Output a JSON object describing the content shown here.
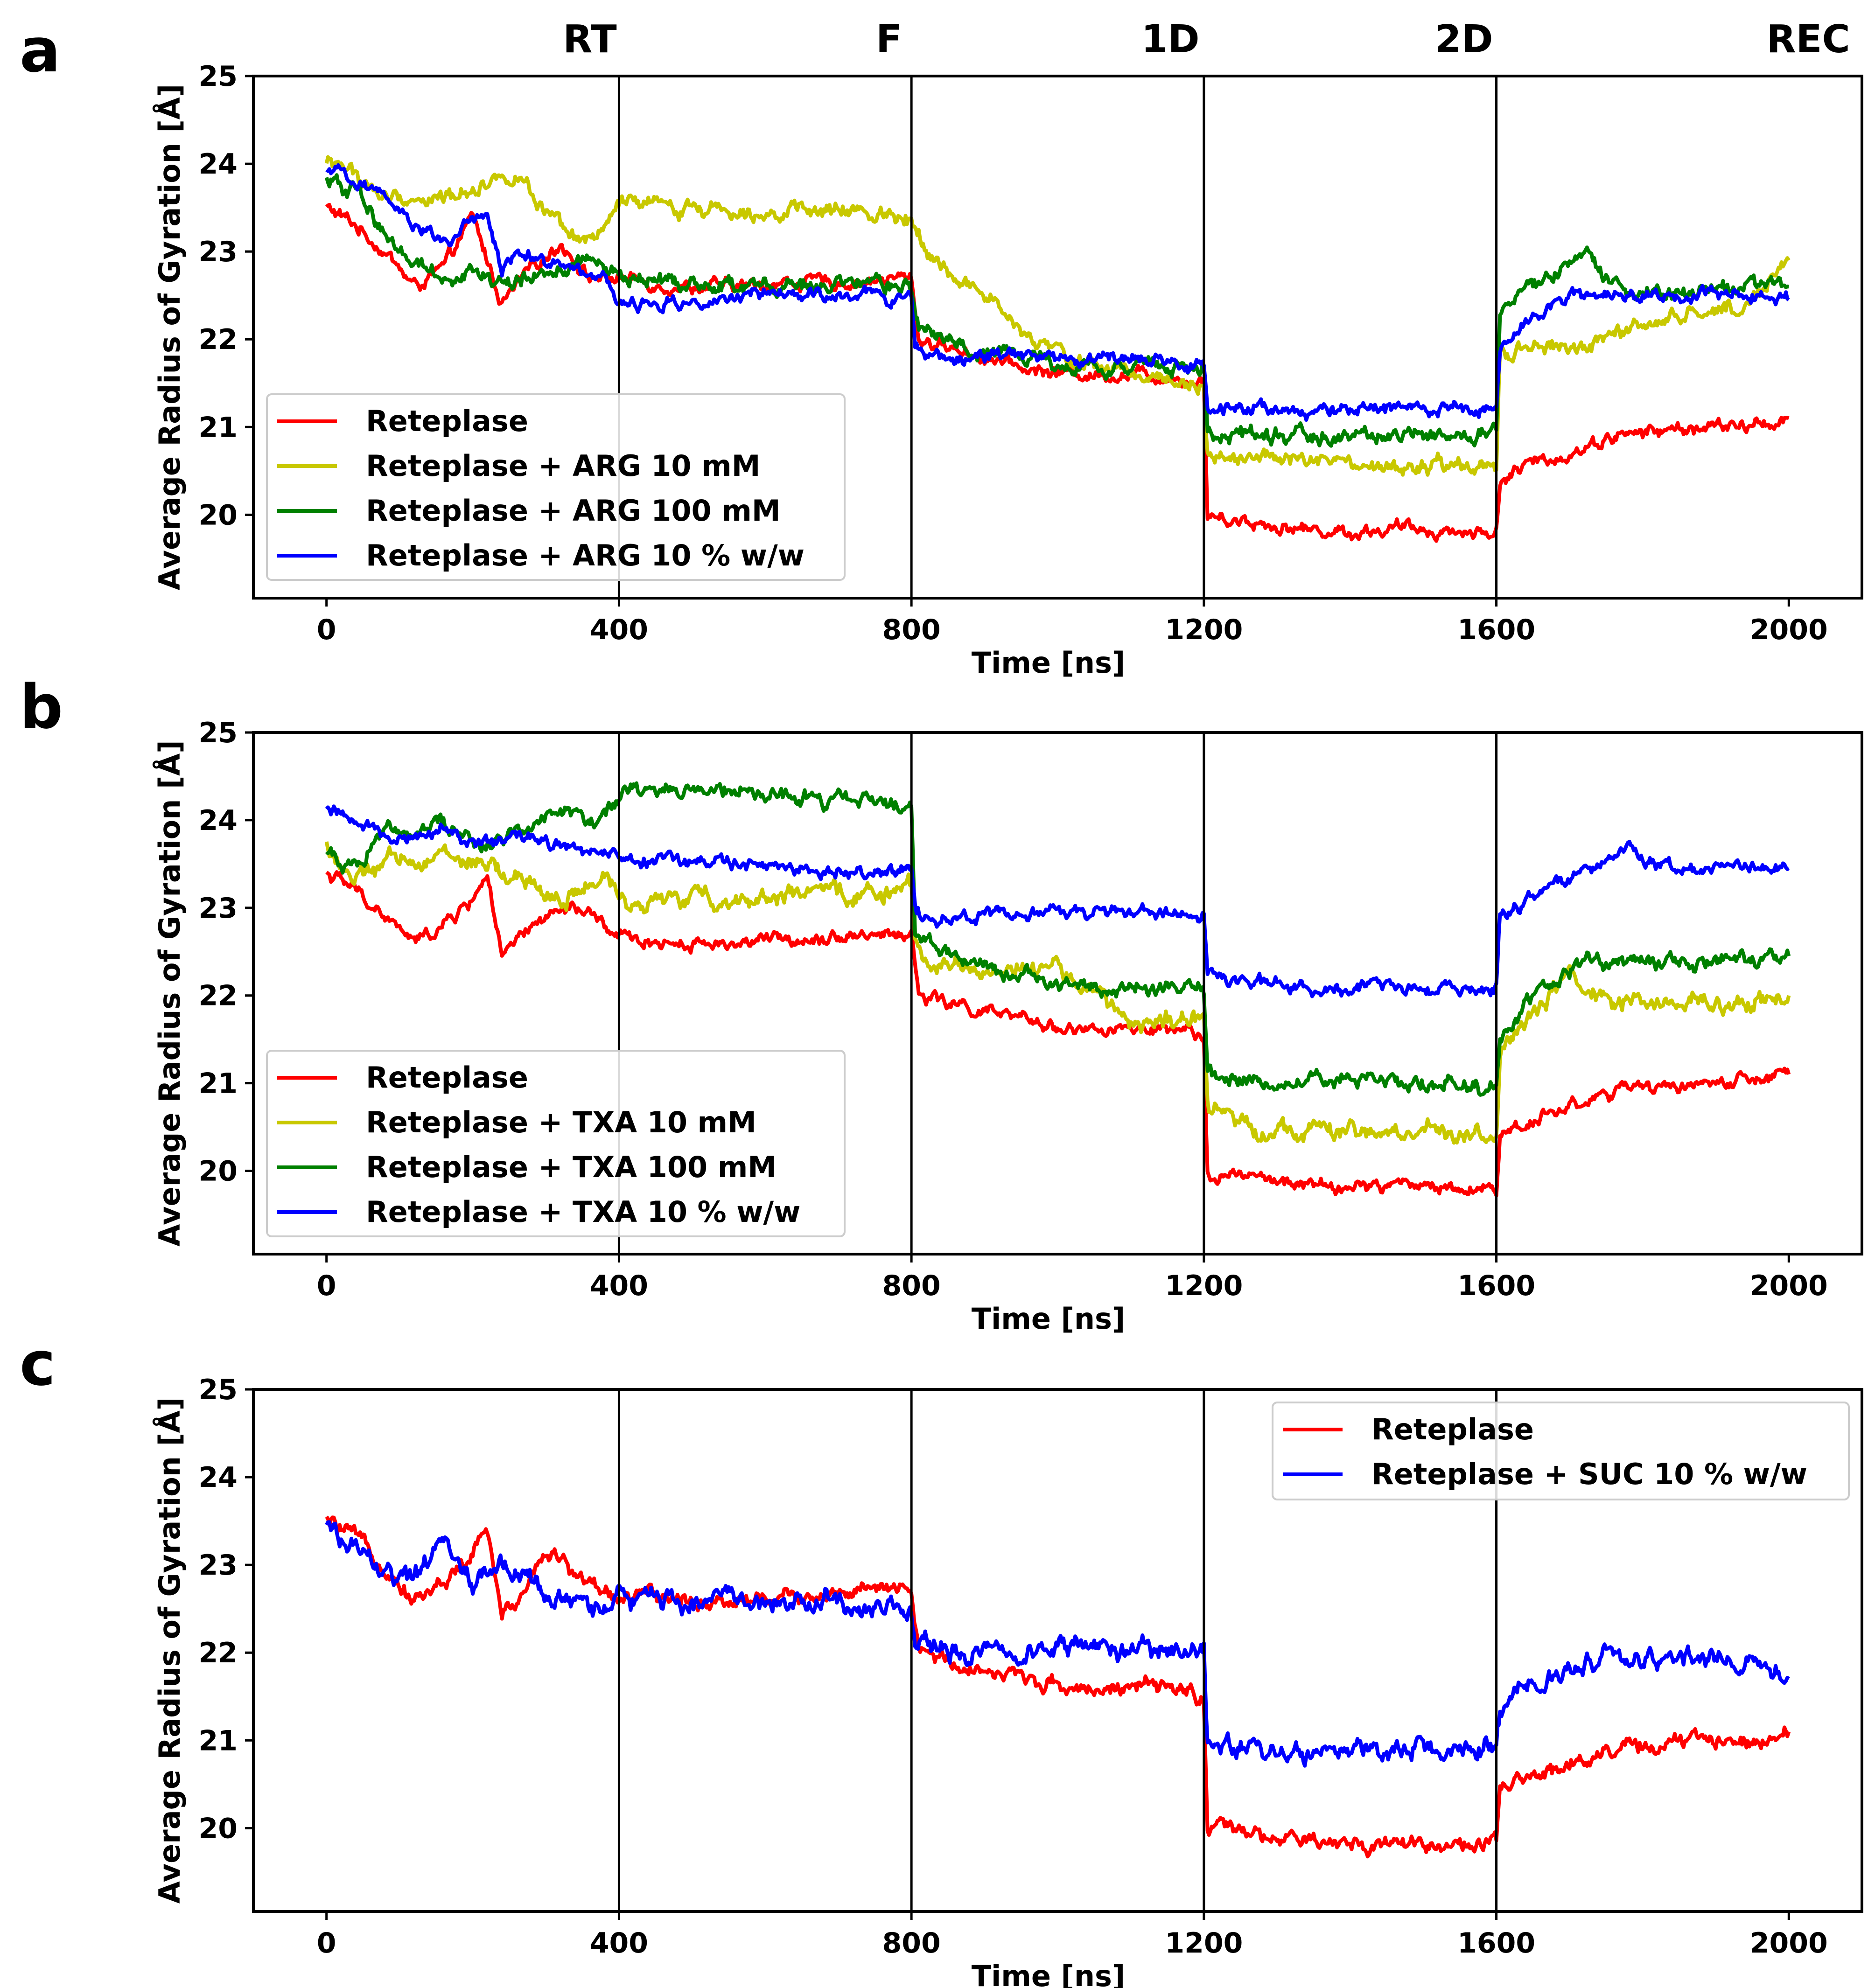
{
  "figure": {
    "phase_labels": [
      "RT",
      "F",
      "1D",
      "2D",
      "REC"
    ],
    "phase_boundaries_ns": [
      400,
      800,
      1200,
      1600
    ],
    "xlabel": "Time [ns]",
    "ylabel": "Average Radius of Gyration [Å]",
    "colors": {
      "Reteplase": "#ff0000",
      "10mM": "#c8c800",
      "100mM": "#008000",
      "10ww": "#0000ff"
    }
  },
  "chart_data": [
    {
      "panel": "a",
      "type": "line",
      "title": "",
      "xlabel": "Time [ns]",
      "ylabel": "Average Radius of Gyration [Å]",
      "xlim": [
        -100,
        2100
      ],
      "ylim": [
        19.05,
        25
      ],
      "xticks": [
        0,
        400,
        800,
        1200,
        1600,
        2000
      ],
      "yticks": [
        20,
        21,
        22,
        23,
        24,
        25
      ],
      "legend_position": "lower-left",
      "series": [
        {
          "name": "Reteplase",
          "color": "#ff0000",
          "x": [
            0,
            40,
            80,
            120,
            160,
            200,
            240,
            280,
            320,
            360,
            400,
            480,
            560,
            640,
            720,
            800,
            810,
            880,
            960,
            1040,
            1120,
            1180,
            1200,
            1205,
            1240,
            1320,
            1400,
            1480,
            1560,
            1600,
            1605,
            1640,
            1700,
            1760,
            1820,
            1880,
            1940,
            2000
          ],
          "y": [
            23.5,
            23.3,
            23.0,
            22.6,
            22.8,
            23.4,
            22.4,
            22.8,
            23.1,
            22.7,
            22.7,
            22.6,
            22.6,
            22.65,
            22.65,
            22.7,
            22.0,
            21.85,
            21.65,
            21.6,
            21.6,
            21.55,
            21.5,
            20.0,
            19.95,
            19.85,
            19.8,
            19.85,
            19.8,
            19.8,
            20.4,
            20.55,
            20.7,
            20.9,
            20.95,
            21.0,
            21.0,
            21.1
          ],
          "noise": 0.05
        },
        {
          "name": "Reteplase + ARG 10 mM",
          "color": "#c8c800",
          "x": [
            0,
            20,
            80,
            160,
            220,
            260,
            300,
            340,
            380,
            395,
            400,
            480,
            560,
            640,
            720,
            800,
            840,
            900,
            960,
            1040,
            1120,
            1200,
            1205,
            1280,
            1360,
            1440,
            1520,
            1600,
            1605,
            1640,
            1700,
            1760,
            1820,
            1880,
            1940,
            2000
          ],
          "y": [
            24.0,
            24.0,
            23.6,
            23.6,
            23.8,
            23.9,
            23.4,
            23.1,
            23.2,
            23.5,
            23.55,
            23.5,
            23.5,
            23.45,
            23.45,
            23.4,
            22.8,
            22.5,
            22.0,
            21.7,
            21.6,
            21.5,
            20.7,
            20.65,
            20.6,
            20.5,
            20.55,
            20.5,
            21.8,
            21.9,
            21.9,
            22.0,
            22.2,
            22.3,
            22.4,
            22.9
          ],
          "noise": 0.06
        },
        {
          "name": "Reteplase + ARG 100 mM",
          "color": "#008000",
          "x": [
            0,
            40,
            80,
            120,
            160,
            200,
            240,
            280,
            320,
            360,
            400,
            480,
            560,
            640,
            720,
            800,
            810,
            880,
            960,
            1040,
            1120,
            1200,
            1205,
            1280,
            1360,
            1440,
            1520,
            1600,
            1605,
            1640,
            1700,
            1730,
            1760,
            1820,
            1880,
            1940,
            2000
          ],
          "y": [
            23.8,
            23.7,
            23.2,
            22.9,
            22.7,
            22.8,
            22.6,
            22.7,
            22.8,
            22.9,
            22.7,
            22.65,
            22.6,
            22.6,
            22.6,
            22.6,
            22.1,
            21.9,
            21.8,
            21.7,
            21.7,
            21.65,
            20.95,
            20.9,
            20.9,
            20.9,
            20.9,
            20.9,
            22.2,
            22.6,
            22.8,
            22.9,
            22.6,
            22.55,
            22.55,
            22.6,
            22.6
          ],
          "noise": 0.06
        },
        {
          "name": "Reteplase + ARG 10 % w/w",
          "color": "#0000ff",
          "x": [
            0,
            40,
            80,
            120,
            160,
            200,
            220,
            240,
            260,
            300,
            340,
            380,
            400,
            480,
            560,
            640,
            720,
            800,
            805,
            880,
            960,
            1040,
            1120,
            1200,
            1205,
            1280,
            1360,
            1440,
            1520,
            1600,
            1605,
            1640,
            1700,
            1760,
            1820,
            1880,
            1940,
            2000
          ],
          "y": [
            23.9,
            23.8,
            23.7,
            23.3,
            23.1,
            23.3,
            23.4,
            22.8,
            23.0,
            22.9,
            22.85,
            22.7,
            22.4,
            22.4,
            22.45,
            22.5,
            22.5,
            22.45,
            21.85,
            21.8,
            21.8,
            21.75,
            21.75,
            21.7,
            21.2,
            21.2,
            21.2,
            21.2,
            21.2,
            21.2,
            21.8,
            22.2,
            22.5,
            22.5,
            22.5,
            22.55,
            22.5,
            22.45
          ],
          "noise": 0.05
        }
      ]
    },
    {
      "panel": "b",
      "type": "line",
      "title": "",
      "xlabel": "Time [ns]",
      "ylabel": "Average Radius of Gyration [Å]",
      "xlim": [
        -100,
        2100
      ],
      "ylim": [
        19.05,
        25
      ],
      "xticks": [
        0,
        400,
        800,
        1200,
        1600,
        2000
      ],
      "yticks": [
        20,
        21,
        22,
        23,
        24,
        25
      ],
      "legend_position": "lower-left",
      "series": [
        {
          "name": "Reteplase",
          "color": "#ff0000",
          "x": [
            0,
            40,
            80,
            120,
            160,
            200,
            220,
            240,
            260,
            300,
            340,
            380,
            400,
            480,
            560,
            640,
            720,
            800,
            810,
            880,
            960,
            1040,
            1120,
            1180,
            1200,
            1205,
            1240,
            1320,
            1400,
            1480,
            1560,
            1600,
            1605,
            1640,
            1700,
            1760,
            1820,
            1880,
            1940,
            2000
          ],
          "y": [
            23.4,
            23.2,
            22.9,
            22.6,
            22.8,
            23.1,
            23.4,
            22.4,
            22.6,
            22.9,
            23.0,
            22.8,
            22.65,
            22.6,
            22.6,
            22.65,
            22.7,
            22.7,
            22.0,
            21.85,
            21.7,
            21.6,
            21.6,
            21.55,
            21.5,
            20.0,
            19.95,
            19.85,
            19.8,
            19.85,
            19.8,
            19.8,
            20.4,
            20.55,
            20.75,
            20.9,
            20.95,
            21.0,
            21.0,
            21.1
          ],
          "noise": 0.05
        },
        {
          "name": "Reteplase + TXA 10 mM",
          "color": "#c8c800",
          "x": [
            0,
            40,
            80,
            160,
            240,
            320,
            380,
            400,
            480,
            560,
            640,
            720,
            800,
            805,
            880,
            960,
            1000,
            1040,
            1080,
            1120,
            1200,
            1205,
            1280,
            1360,
            1440,
            1520,
            1600,
            1605,
            1640,
            1700,
            1760,
            1820,
            1880,
            1940,
            2000
          ],
          "y": [
            23.7,
            23.3,
            23.5,
            23.6,
            23.4,
            23.1,
            23.3,
            23.1,
            23.1,
            23.1,
            23.15,
            23.15,
            23.2,
            22.5,
            22.3,
            22.3,
            22.3,
            22.1,
            21.8,
            21.7,
            21.7,
            20.7,
            20.5,
            20.45,
            20.4,
            20.45,
            20.4,
            21.3,
            21.7,
            22.2,
            21.9,
            21.9,
            21.95,
            21.9,
            22.0
          ],
          "noise": 0.07
        },
        {
          "name": "Reteplase + TXA 100 mM",
          "color": "#008000",
          "x": [
            0,
            40,
            80,
            120,
            160,
            200,
            240,
            280,
            320,
            360,
            400,
            420,
            480,
            560,
            640,
            720,
            800,
            805,
            880,
            960,
            1040,
            1120,
            1200,
            1205,
            1280,
            1360,
            1440,
            1520,
            1600,
            1605,
            1640,
            1700,
            1760,
            1820,
            1880,
            1940,
            2000
          ],
          "y": [
            23.6,
            23.5,
            23.9,
            23.9,
            24.0,
            23.7,
            23.8,
            24.0,
            24.1,
            24.0,
            24.2,
            24.35,
            24.35,
            24.3,
            24.25,
            24.2,
            24.2,
            22.7,
            22.35,
            22.25,
            22.1,
            22.05,
            22.05,
            21.1,
            21.05,
            21.05,
            21.0,
            21.0,
            20.95,
            21.5,
            21.9,
            22.3,
            22.4,
            22.4,
            22.35,
            22.4,
            22.45
          ],
          "noise": 0.06
        },
        {
          "name": "Reteplase + TXA 10 % w/w",
          "color": "#0000ff",
          "x": [
            0,
            40,
            80,
            120,
            160,
            200,
            240,
            280,
            320,
            360,
            400,
            480,
            560,
            640,
            720,
            800,
            805,
            880,
            960,
            1040,
            1120,
            1200,
            1205,
            1280,
            1360,
            1440,
            1520,
            1600,
            1605,
            1640,
            1700,
            1760,
            1780,
            1820,
            1880,
            1940,
            2000
          ],
          "y": [
            24.1,
            24.0,
            23.9,
            23.8,
            23.9,
            23.7,
            23.75,
            23.8,
            23.7,
            23.65,
            23.6,
            23.5,
            23.5,
            23.45,
            23.4,
            23.4,
            22.9,
            22.9,
            22.95,
            22.95,
            22.95,
            22.9,
            22.2,
            22.15,
            22.1,
            22.1,
            22.1,
            22.1,
            22.9,
            23.1,
            23.3,
            23.55,
            23.7,
            23.5,
            23.45,
            23.5,
            23.45
          ],
          "noise": 0.05
        }
      ]
    },
    {
      "panel": "c",
      "type": "line",
      "title": "",
      "xlabel": "Time [ns]",
      "ylabel": "Average Radius of Gyration [Å]",
      "xlim": [
        -100,
        2100
      ],
      "ylim": [
        19.05,
        25
      ],
      "xticks": [
        0,
        400,
        800,
        1200,
        1600,
        2000
      ],
      "yticks": [
        20,
        21,
        22,
        23,
        24,
        25
      ],
      "legend_position": "upper-right",
      "series": [
        {
          "name": "Reteplase",
          "color": "#ff0000",
          "x": [
            0,
            40,
            80,
            120,
            160,
            200,
            220,
            240,
            260,
            300,
            340,
            380,
            400,
            480,
            560,
            640,
            720,
            800,
            810,
            880,
            960,
            1040,
            1120,
            1180,
            1200,
            1205,
            1240,
            1320,
            1400,
            1480,
            1560,
            1600,
            1605,
            1640,
            1700,
            1760,
            1820,
            1880,
            1940,
            2000
          ],
          "y": [
            23.5,
            23.3,
            23.0,
            22.6,
            22.8,
            23.1,
            23.4,
            22.4,
            22.6,
            23.2,
            22.9,
            22.7,
            22.65,
            22.6,
            22.6,
            22.65,
            22.7,
            22.7,
            22.0,
            21.85,
            21.7,
            21.6,
            21.6,
            21.55,
            21.5,
            20.0,
            19.95,
            19.85,
            19.8,
            19.85,
            19.8,
            19.8,
            20.4,
            20.55,
            20.75,
            20.9,
            20.95,
            21.0,
            21.0,
            21.1
          ],
          "noise": 0.06
        },
        {
          "name": "Reteplase + SUC 10 % w/w",
          "color": "#0000ff",
          "x": [
            0,
            40,
            80,
            120,
            160,
            200,
            240,
            280,
            320,
            360,
            400,
            480,
            560,
            640,
            720,
            800,
            805,
            880,
            960,
            1040,
            1120,
            1200,
            1205,
            1280,
            1360,
            1440,
            1520,
            1600,
            1605,
            1640,
            1700,
            1740,
            1780,
            1820,
            1880,
            1940,
            2000
          ],
          "y": [
            23.4,
            23.2,
            22.9,
            22.8,
            23.3,
            22.8,
            23.0,
            22.8,
            22.6,
            22.5,
            22.6,
            22.6,
            22.6,
            22.6,
            22.55,
            22.5,
            22.1,
            22.0,
            22.05,
            22.05,
            22.0,
            22.0,
            20.95,
            20.9,
            20.85,
            20.85,
            20.9,
            20.9,
            21.3,
            21.55,
            21.8,
            22.0,
            21.9,
            21.85,
            22.0,
            21.9,
            21.7
          ],
          "noise": 0.08
        }
      ]
    }
  ]
}
